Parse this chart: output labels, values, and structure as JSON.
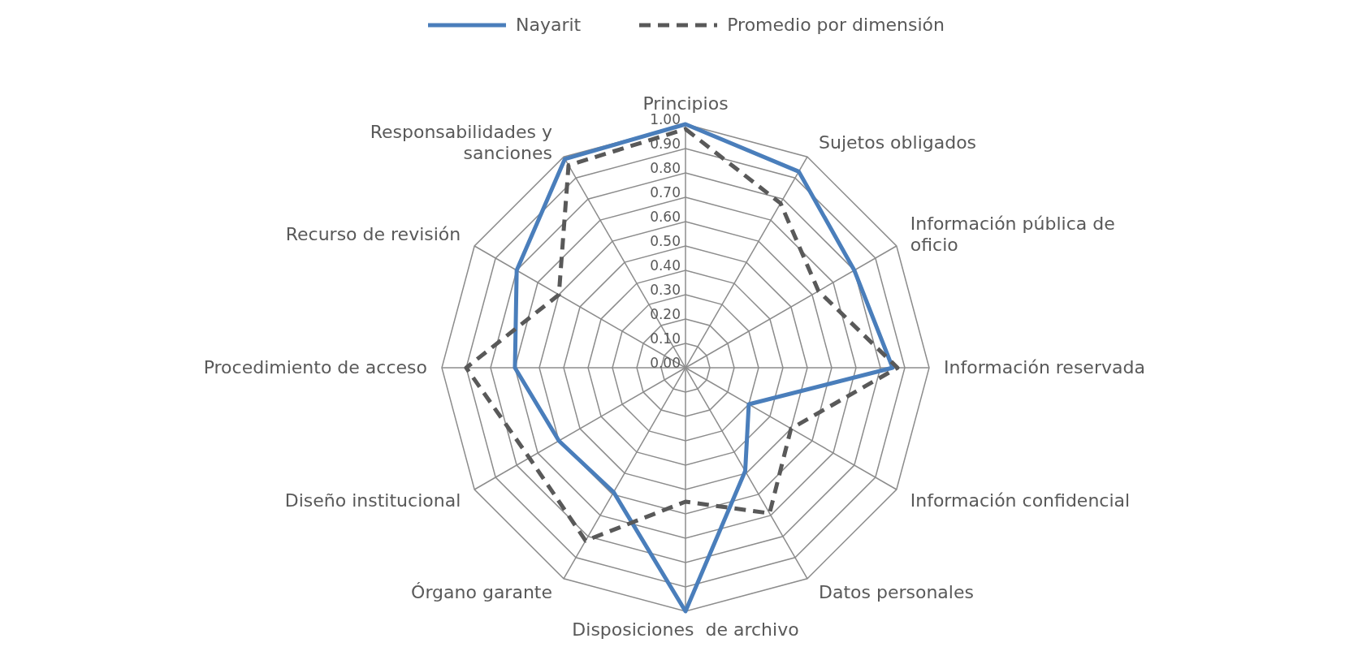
{
  "chart_data": {
    "type": "radar",
    "categories": [
      "Principios",
      "Sujetos obligados",
      "Información pública de oficio",
      "Información reservada",
      "Información confidencial",
      "Datos personales",
      "Disposiciones  de archivo",
      "Órgano garante",
      "Diseño institucional",
      "Procedimiento de acceso",
      "Recurso de revisión",
      "Responsabilidades y sanciones"
    ],
    "series": [
      {
        "name": "Nayarit",
        "color": "#4a7ebb",
        "line_style": "solid",
        "values": [
          1.0,
          0.93,
          0.8,
          0.85,
          0.3,
          0.49,
          1.0,
          0.59,
          0.6,
          0.7,
          0.8,
          0.99
        ]
      },
      {
        "name": "Promedio por dimensión",
        "color": "#595959",
        "line_style": "dashed",
        "values": [
          0.98,
          0.78,
          0.63,
          0.87,
          0.5,
          0.69,
          0.55,
          0.82,
          0.74,
          0.9,
          0.6,
          0.96
        ]
      }
    ],
    "ylim": [
      0,
      1
    ],
    "yticks": [
      {
        "value": 0,
        "label": "0.00"
      },
      {
        "value": 0.1,
        "label": "0.10"
      },
      {
        "value": 0.2,
        "label": "0.20"
      },
      {
        "value": 0.3,
        "label": "0.30"
      },
      {
        "value": 0.4,
        "label": "0.40"
      },
      {
        "value": 0.5,
        "label": "0.50"
      },
      {
        "value": 0.6,
        "label": "0.60"
      },
      {
        "value": 0.7,
        "label": "0.70"
      },
      {
        "value": 0.8,
        "label": "0.80"
      },
      {
        "value": 0.9,
        "label": "0.90"
      },
      {
        "value": 1,
        "label": "1.00"
      }
    ],
    "grid": true,
    "legend": "top",
    "marker": "none"
  }
}
